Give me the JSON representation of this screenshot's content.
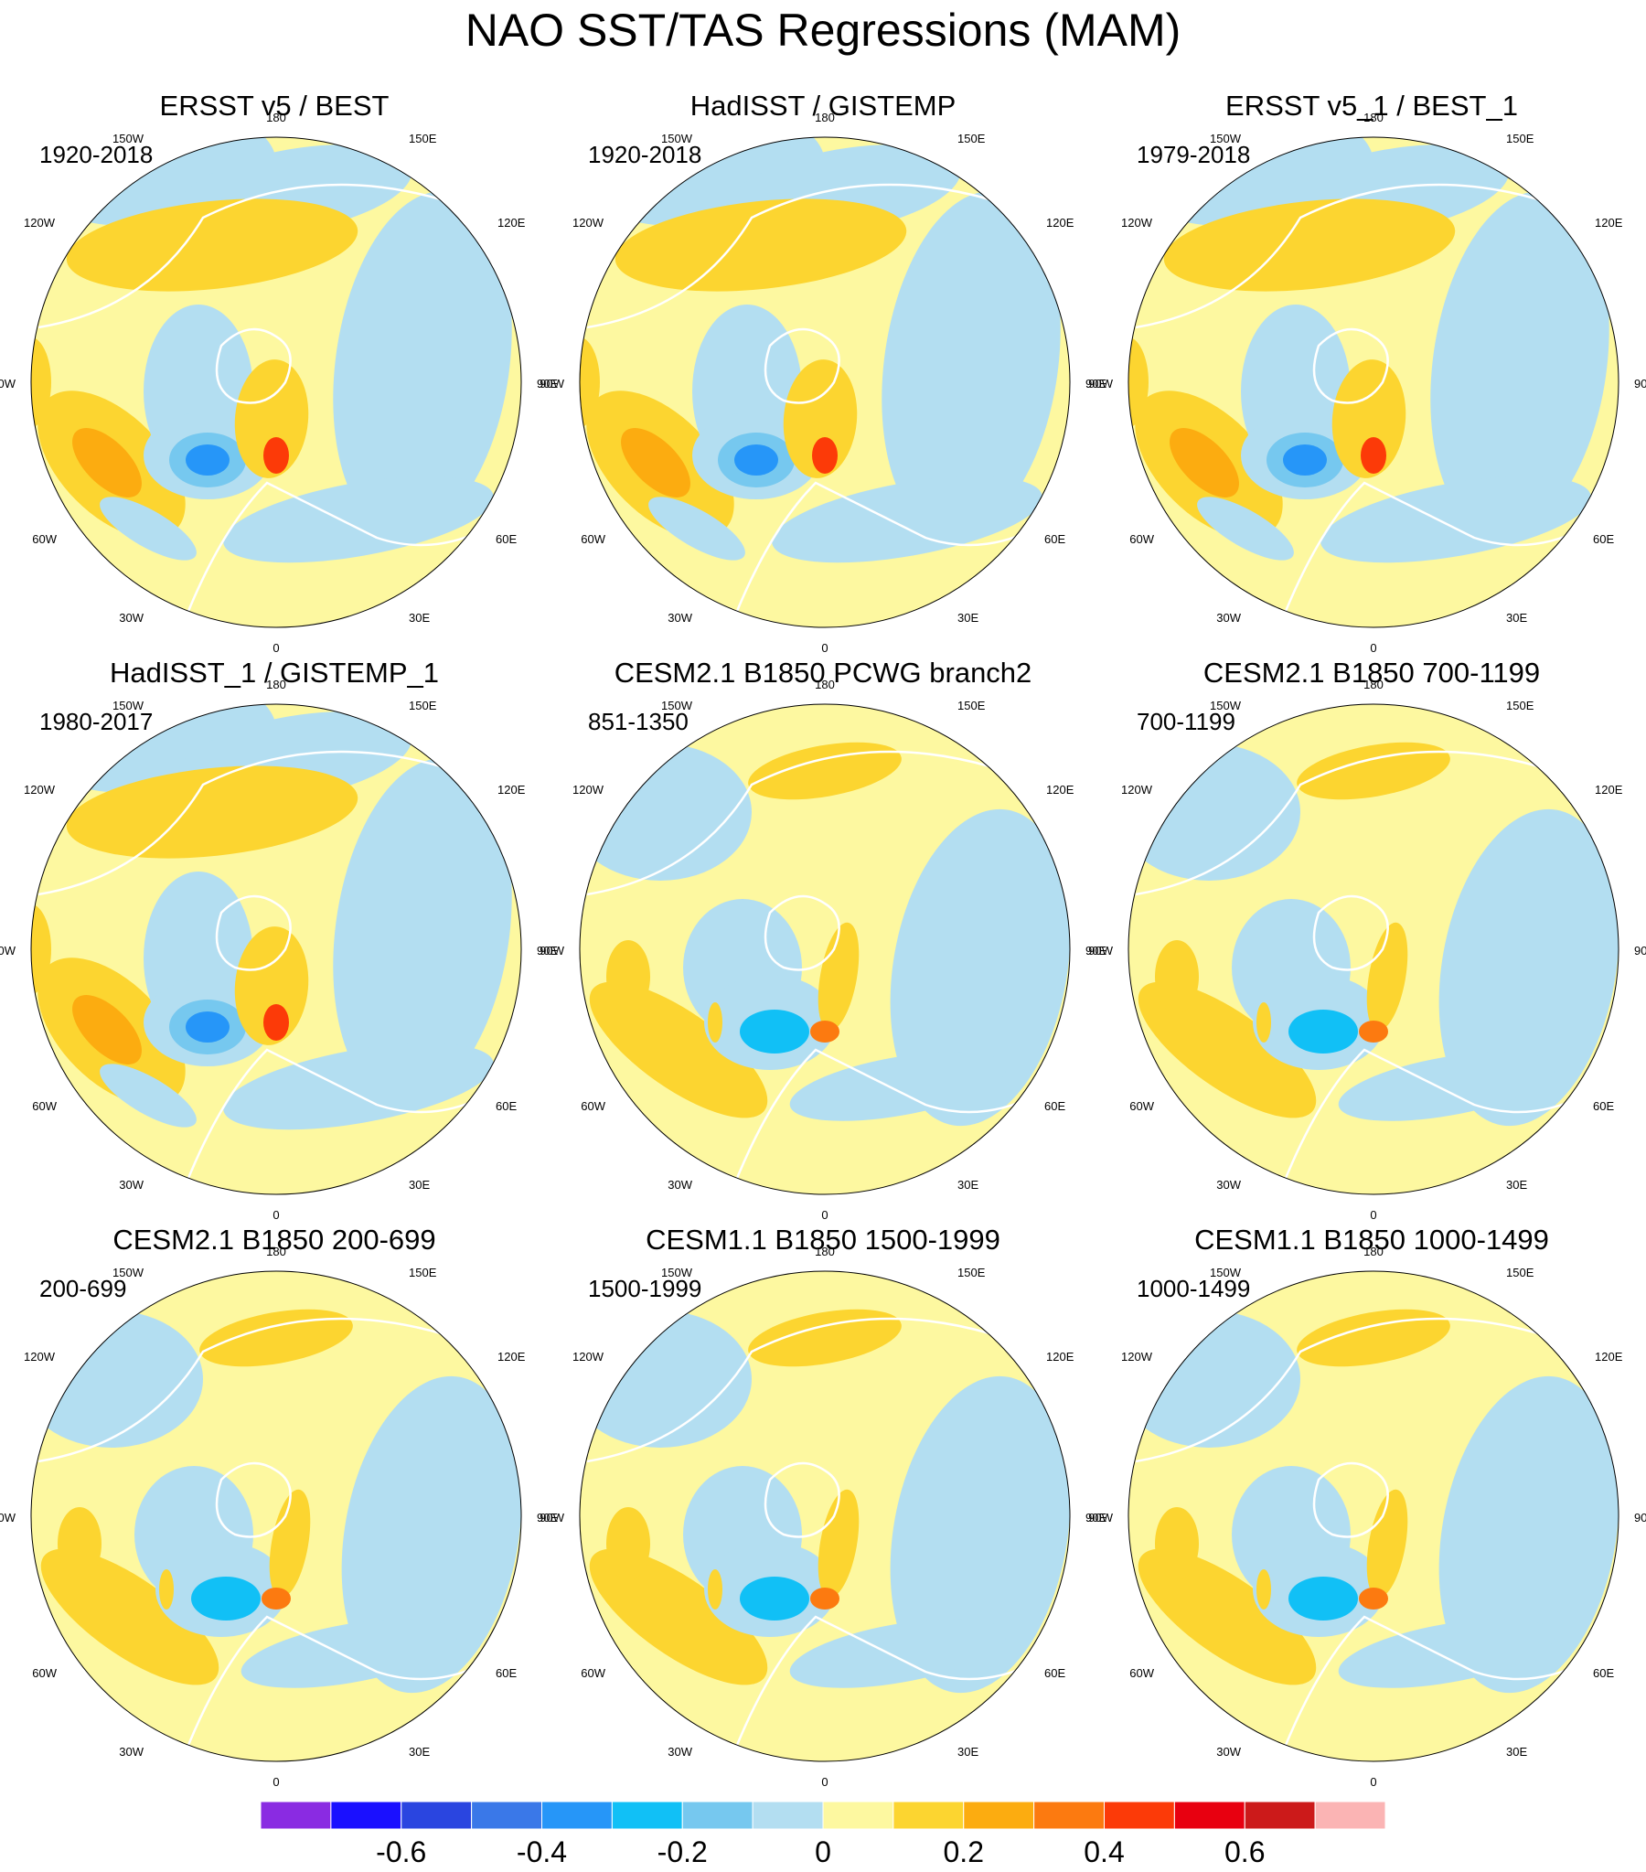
{
  "title": "NAO SST/TAS Regressions (MAM)",
  "panels": [
    {
      "title": "ERSST v5 / BEST",
      "period": "1920-2018",
      "pattern": "obs"
    },
    {
      "title": "HadISST / GISTEMP",
      "period": "1920-2018",
      "pattern": "obs"
    },
    {
      "title": "ERSST v5_1 / BEST_1",
      "period": "1979-2018",
      "pattern": "obs"
    },
    {
      "title": "HadISST_1 / GISTEMP_1",
      "period": "1980-2017",
      "pattern": "obs"
    },
    {
      "title": "CESM2.1 B1850 PCWG branch2",
      "period": "851-1350",
      "pattern": "model"
    },
    {
      "title": "CESM2.1 B1850 700-1199",
      "period": "700-1199",
      "pattern": "model"
    },
    {
      "title": "CESM2.1 B1850 200-699",
      "period": "200-699",
      "pattern": "model"
    },
    {
      "title": "CESM1.1 B1850 1500-1999",
      "period": "1500-1999",
      "pattern": "model"
    },
    {
      "title": "CESM1.1 B1850 1000-1499",
      "period": "1000-1499",
      "pattern": "model"
    }
  ],
  "longitude_labels": [
    "180",
    "150E",
    "120E",
    "90E",
    "60E",
    "30E",
    "0",
    "30W",
    "60W",
    "90W",
    "120W",
    "150W"
  ],
  "colorbar": {
    "colors": [
      "#8a2be2",
      "#1a10ff",
      "#2a45e0",
      "#3a78e8",
      "#2696f8",
      "#11c0f6",
      "#76c8ef",
      "#b3def1",
      "#fdf8a0",
      "#fcd530",
      "#fcac10",
      "#fc7a10",
      "#fc3a08",
      "#e80010",
      "#cc1a1a",
      "#fbb4b4"
    ],
    "labels": [
      "-0.6",
      "-0.4",
      "-0.2",
      "0",
      "0.2",
      "0.4",
      "0.6"
    ]
  }
}
